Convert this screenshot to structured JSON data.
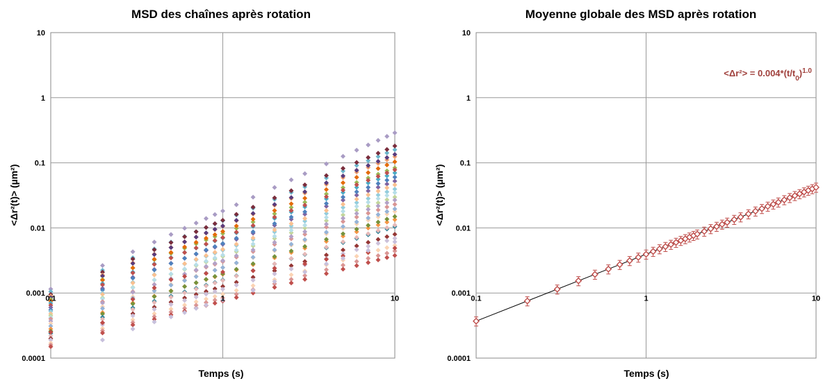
{
  "chart_data": [
    {
      "type": "scatter",
      "title": "MSD des chaînes après rotation",
      "xlabel": "Temps (s)",
      "ylabel": "<Δr²(t)> (µm²)",
      "xscale": "log",
      "yscale": "log",
      "xlim": [
        0.1,
        10
      ],
      "ylim": [
        0.0001,
        10
      ],
      "x_ticks": [
        0.1,
        1,
        10
      ],
      "x_tick_labels": [
        "0.1",
        "1",
        "10"
      ],
      "y_ticks": [
        0.0001,
        0.001,
        0.01,
        0.1,
        1,
        10
      ],
      "y_tick_labels": [
        "0.0001",
        "0.001",
        "0.01",
        "0.1",
        "1",
        "10"
      ],
      "grid": true,
      "marker": "diamond",
      "x": [
        0.1,
        0.2,
        0.3,
        0.4,
        0.5,
        0.6,
        0.7,
        0.8,
        0.9,
        1,
        1.2,
        1.5,
        2,
        2.5,
        3,
        4,
        5,
        6,
        7,
        8,
        9,
        10
      ],
      "series_power_law": [
        {
          "a": 0.00115,
          "b": 1.2,
          "color": "#a99cc4"
        },
        {
          "a": 0.00105,
          "b": 1.09,
          "color": "#6bb6cc"
        },
        {
          "a": 0.00095,
          "b": 1.14,
          "color": "#7a2d3c"
        },
        {
          "a": 0.0009,
          "b": 1.07,
          "color": "#f0a070"
        },
        {
          "a": 0.00085,
          "b": 1.1,
          "color": "#5a3c7c"
        },
        {
          "a": 0.0008,
          "b": 1.01,
          "color": "#9bbb59"
        },
        {
          "a": 0.00075,
          "b": 1.07,
          "color": "#e46c0a"
        },
        {
          "a": 0.0007,
          "b": 1.0,
          "color": "#4bacc6"
        },
        {
          "a": 0.00065,
          "b": 1.04,
          "color": "#c0504d"
        },
        {
          "a": 0.0006,
          "b": 0.97,
          "color": "#8064a2"
        },
        {
          "a": 0.00055,
          "b": 1.02,
          "color": "#4f81bd"
        },
        {
          "a": 0.00052,
          "b": 0.94,
          "color": "#93cddd"
        },
        {
          "a": 0.00048,
          "b": 0.99,
          "color": "#fac090"
        },
        {
          "a": 0.00045,
          "b": 0.91,
          "color": "#c3d69b"
        },
        {
          "a": 0.00042,
          "b": 0.96,
          "color": "#b7dee8"
        },
        {
          "a": 0.0004,
          "b": 0.88,
          "color": "#d99694"
        },
        {
          "a": 0.00037,
          "b": 0.93,
          "color": "#b3a2c7"
        },
        {
          "a": 0.00034,
          "b": 0.86,
          "color": "#fcd5b5"
        },
        {
          "a": 0.00031,
          "b": 0.9,
          "color": "#95b3d7"
        },
        {
          "a": 0.00028,
          "b": 0.84,
          "color": "#f79646"
        },
        {
          "a": 0.00026,
          "b": 0.88,
          "color": "#76923c"
        },
        {
          "a": 0.00024,
          "b": 0.82,
          "color": "#31859c"
        },
        {
          "a": 0.00022,
          "b": 0.85,
          "color": "#e6b9b8"
        },
        {
          "a": 0.0002,
          "b": 0.8,
          "color": "#953735"
        },
        {
          "a": 0.00019,
          "b": 0.78,
          "color": "#ccc1da"
        },
        {
          "a": 0.00017,
          "b": 0.75,
          "color": "#fbd4b4"
        },
        {
          "a": 0.00016,
          "b": 0.72,
          "color": "#da9694"
        },
        {
          "a": 0.00015,
          "b": 0.7,
          "color": "#c0504d"
        }
      ],
      "special_series": [
        {
          "color": "#be4b48",
          "points": [
            [
              0.1,
              0.00025
            ],
            [
              0.2,
              0.00035
            ],
            [
              0.3,
              0.0008
            ],
            [
              0.4,
              0.0012
            ],
            [
              0.5,
              0.0016
            ],
            [
              0.6,
              0.0018
            ],
            [
              0.8,
              0.002
            ],
            [
              1,
              0.0021
            ],
            [
              1.5,
              0.0022
            ],
            [
              2,
              0.0024
            ],
            [
              3,
              0.0028
            ],
            [
              4,
              0.0033
            ],
            [
              5,
              0.0037
            ],
            [
              7,
              0.0042
            ],
            [
              10,
              0.0049
            ]
          ]
        },
        {
          "color": "#c7c0dc",
          "points": [
            [
              0.2,
              0.00019
            ],
            [
              0.3,
              0.00028
            ],
            [
              0.4,
              0.00036
            ],
            [
              0.5,
              0.00043
            ],
            [
              0.6,
              0.0005
            ],
            [
              0.7,
              0.00058
            ],
            [
              0.8,
              0.00065
            ],
            [
              1,
              0.00078
            ],
            [
              1.5,
              0.0011
            ],
            [
              2,
              0.0015
            ],
            [
              3,
              0.0021
            ],
            [
              4,
              0.0028
            ],
            [
              5,
              0.0034
            ],
            [
              7,
              0.0045
            ],
            [
              10,
              0.0061
            ]
          ]
        }
      ]
    },
    {
      "type": "scatter",
      "title": "Moyenne globale des MSD après rotation",
      "xlabel": "Temps (s)",
      "ylabel": "<Δr²(t)> (µm²)",
      "xscale": "log",
      "yscale": "log",
      "xlim": [
        0.1,
        10
      ],
      "ylim": [
        0.0001,
        10
      ],
      "x_ticks": [
        0.1,
        1,
        10
      ],
      "x_tick_labels": [
        "0.1",
        "1",
        "10"
      ],
      "y_ticks": [
        0.0001,
        0.001,
        0.01,
        0.1,
        1,
        10
      ],
      "y_tick_labels": [
        "0.0001",
        "0.001",
        "0.01",
        "0.1",
        "1",
        "10"
      ],
      "grid": true,
      "marker": "open diamond with error bars",
      "marker_color": "#be4b48",
      "x": [
        0.1,
        0.2,
        0.3,
        0.4,
        0.5,
        0.6,
        0.7,
        0.8,
        0.9,
        1,
        1.1,
        1.2,
        1.3,
        1.4,
        1.5,
        1.6,
        1.7,
        1.8,
        1.9,
        2,
        2.2,
        2.4,
        2.6,
        2.8,
        3,
        3.3,
        3.6,
        4,
        4.4,
        4.8,
        5.2,
        5.6,
        6,
        6.5,
        7,
        7.5,
        8,
        8.5,
        9,
        9.5,
        10
      ],
      "y_fit": {
        "a": 0.004,
        "b": 1.0
      },
      "y_start": 0.00037,
      "error_fraction": 0.16,
      "fit_line": {
        "color": "#000000",
        "from": [
          0.1,
          0.00037
        ],
        "to": [
          10,
          0.042
        ]
      },
      "annotation": {
        "text": "<Δr²> = 0.004*(t/t",
        "sub": "0",
        "tail": ")",
        "sup": "1.0",
        "color": "#a0403c",
        "position": "top-right"
      }
    }
  ]
}
